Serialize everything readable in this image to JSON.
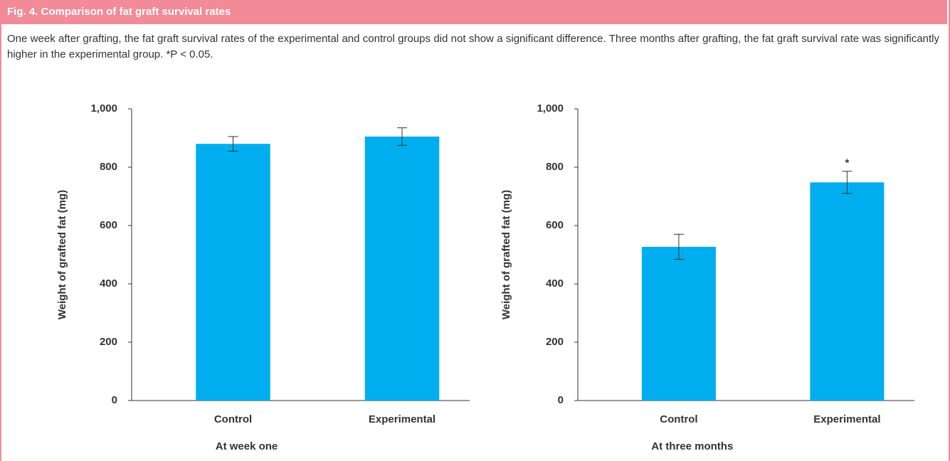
{
  "figure_title": "Fig. 4. Comparison of fat graft survival rates",
  "caption": "One week after grafting, the fat graft survival rates of the experimental and control groups did not show a significant difference. Three months after grafting, the fat graft survival rate was significantly higher in the experimental group. *P < 0.05.",
  "chart_data": [
    {
      "type": "bar",
      "xlabel": "At week one",
      "ylabel": "Weight of grafted fat (mg)",
      "categories": [
        "Control",
        "Experimental"
      ],
      "values": [
        880,
        905
      ],
      "errors": [
        25,
        30
      ],
      "color": "#00aeef",
      "ylim": [
        0,
        1000
      ],
      "yticks": [
        0,
        200,
        400,
        600,
        800,
        {
          "value": 1000,
          "label": "1,000"
        }
      ]
    },
    {
      "type": "bar",
      "xlabel": "At three months",
      "ylabel": "Weight of grafted fat (mg)",
      "categories": [
        "Control",
        "Experimental"
      ],
      "values": [
        527,
        748
      ],
      "errors": [
        43,
        38
      ],
      "color": "#00aeef",
      "ylim": [
        0,
        1000
      ],
      "yticks": [
        0,
        200,
        400,
        600,
        800,
        {
          "value": 1000,
          "label": "1,000"
        }
      ],
      "annotations": [
        {
          "text": "*",
          "category": "Experimental"
        }
      ]
    }
  ]
}
